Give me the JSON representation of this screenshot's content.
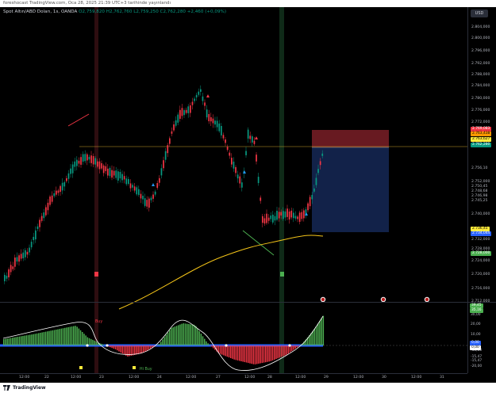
{
  "header": {
    "published_by": "foreshocast TradingView.com, Oca 28, 2025 21:39 UTC+3 tarihinde yayınlandı"
  },
  "symbol": {
    "name": "Spot Altın/ABD Doları, 1s, OANDA",
    "ohlc": "O2,759,820 H2,762,760 L2,759,250 C2,762,280 +2,460 (+0,09%)"
  },
  "currency_badge": "USD",
  "price_axis_labels": [
    "2.804,000",
    "2.800,000",
    "2.796,000",
    "2.792,000",
    "2.788,000",
    "2.784,000",
    "2.780,000",
    "2.776,000",
    "2.772,000",
    "2.756,10",
    "2.752,000",
    "2.750,45",
    "2.748,68",
    "2.746,98",
    "2.745,25",
    "2.740,000",
    "2.732,000",
    "2.728,000",
    "2.724,000",
    "2.720,000",
    "2.716,000",
    "2.712,000"
  ],
  "price_tags": [
    {
      "text": "2.769,083",
      "bg": "#f23645",
      "fg": "#ffffff"
    },
    {
      "text": "2.763,438",
      "bg": "#ff9800",
      "fg": "#000000"
    },
    {
      "text": "2.763,627",
      "bg": "#ffeb3b",
      "fg": "#000000"
    },
    {
      "text": "2.762,280",
      "bg": "#089981",
      "fg": "#ffffff"
    },
    {
      "text": "2.736,45",
      "bg": "#ffeb3b",
      "fg": "#000000"
    },
    {
      "text": "2.734,044",
      "bg": "#2962ff",
      "fg": "#ffffff"
    },
    {
      "text": "2.728,000",
      "bg": "#4caf50",
      "fg": "#ffffff"
    }
  ],
  "osc_axis_labels": [
    "30,00",
    "20,00",
    "10,00",
    "0,00",
    "-10,00",
    "-15,47",
    "-15,47",
    "-20,00"
  ],
  "osc_tags": [
    {
      "text": "39,45",
      "bg": "#4caf50",
      "fg": "#ffffff"
    },
    {
      "text": "35,16",
      "bg": "#4caf50",
      "fg": "#ffffff"
    },
    {
      "text": "0,00",
      "bg": "#2962ff",
      "fg": "#ffffff"
    },
    {
      "text": "0,00",
      "bg": "#ffffff",
      "fg": "#000000"
    }
  ],
  "osc_texts": {
    "buy_top": "Buy",
    "hi_buy": "Hi Buy",
    "buy_bottom": "Bull"
  },
  "time_axis_labels": [
    "12:00",
    "22",
    "12:00",
    "23",
    "12:00",
    "24",
    "12:00",
    "27",
    "12:00",
    "28",
    "12:00",
    "29",
    "12:00",
    "30",
    "12:00",
    "31"
  ],
  "footer": {
    "brand": "TradingView"
  }
}
